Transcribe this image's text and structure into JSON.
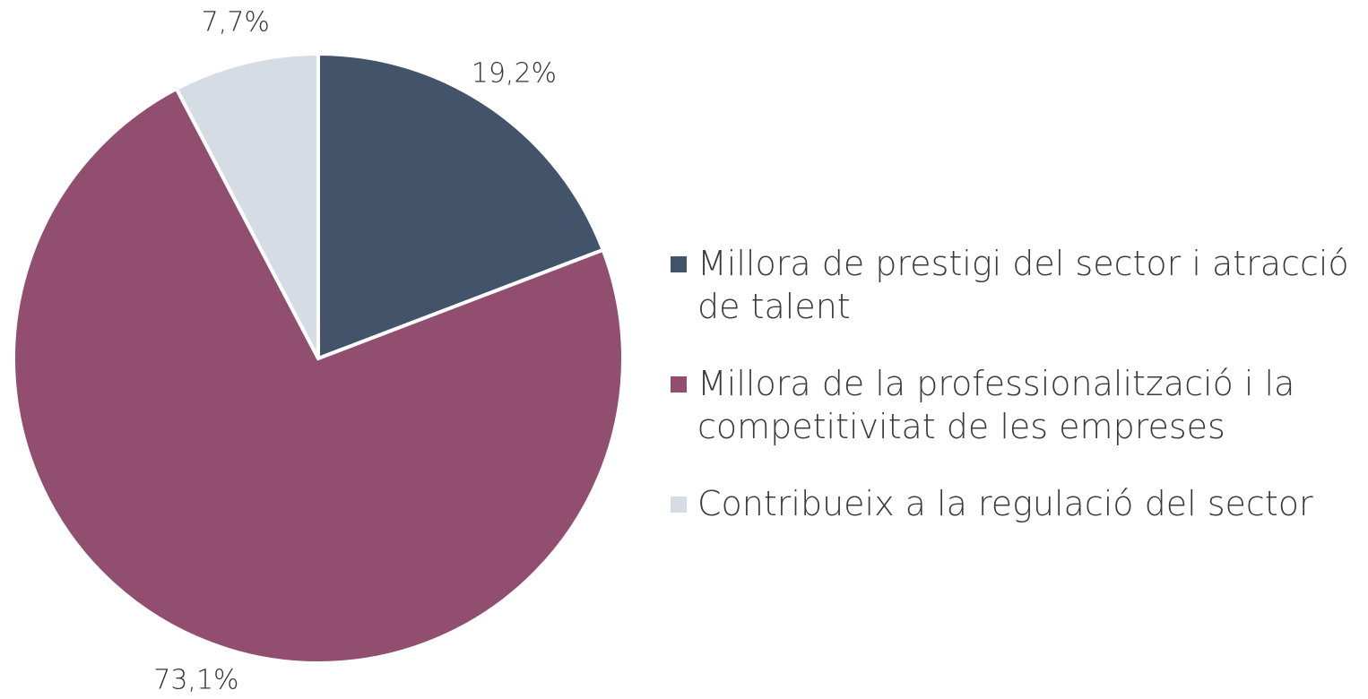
{
  "chart_data": {
    "type": "pie",
    "categories": [
      "Millora de prestigi del sector i atracció de talent",
      "Millora de la professionalització i la competitivitat de les empreses",
      "Contribueix a la regulació del sector"
    ],
    "values": [
      19.2,
      73.1,
      7.7
    ],
    "value_labels": [
      "19,2%",
      "73,1%",
      "7,7%"
    ],
    "colors": [
      "#435369",
      "#924e6f",
      "#d6dce4"
    ]
  }
}
